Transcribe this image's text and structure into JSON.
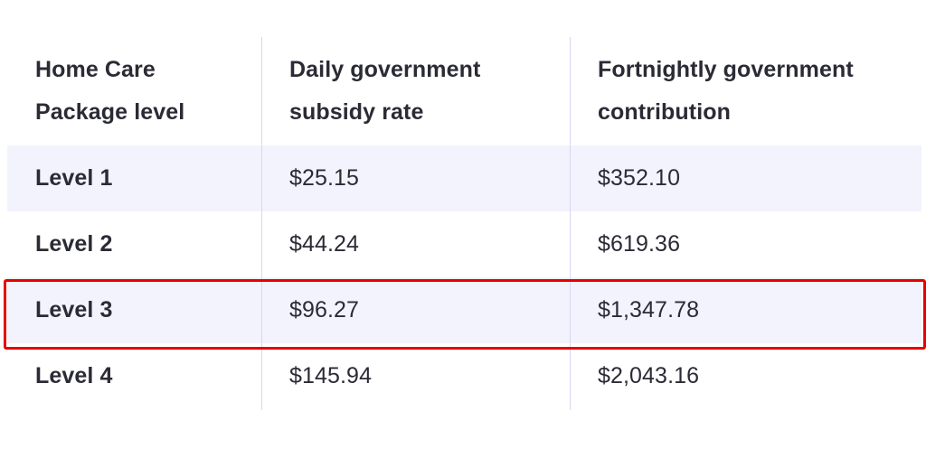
{
  "table": {
    "headers": [
      [
        "Home Care",
        "Package level"
      ],
      [
        "Daily government",
        "subsidy rate"
      ],
      [
        "Fortnightly government",
        "contribution"
      ]
    ],
    "rows": [
      {
        "level": "Level 1",
        "daily": "$25.15",
        "fortnightly": "$352.10"
      },
      {
        "level": "Level 2",
        "daily": "$44.24",
        "fortnightly": "$619.36"
      },
      {
        "level": "Level 3",
        "daily": "$96.27",
        "fortnightly": "$1,347.78"
      },
      {
        "level": "Level 4",
        "daily": "$145.94",
        "fortnightly": "$2,043.16"
      }
    ],
    "highlighted_row": "Level 3"
  },
  "colors": {
    "shaded_row": "#f3f3fd",
    "divider": "#d9d6ef",
    "highlight_border": "#e60000",
    "text": "#2b2b36"
  }
}
